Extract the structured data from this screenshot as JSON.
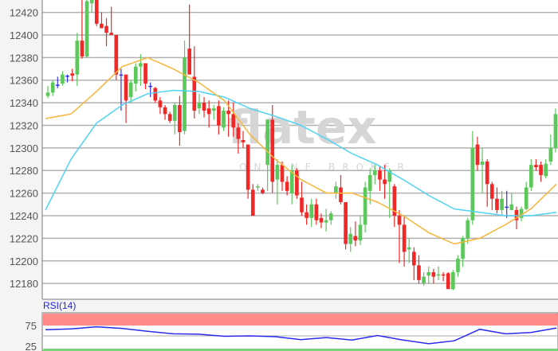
{
  "chart_data": {
    "type": "candlestick",
    "ylim": [
      12166,
      12431
    ],
    "yticks": [
      "12180",
      "12200",
      "12220",
      "12240",
      "12260",
      "12280",
      "12300",
      "12320",
      "12340",
      "12360",
      "12380",
      "12400",
      "12420"
    ],
    "grid": true,
    "colors": {
      "up": "#5cc85c",
      "down": "#f02828",
      "doji": "#3333ee",
      "ma_fast": "#f7b53a",
      "ma_slow": "#4fd3f5",
      "rsi": "#2a2aee",
      "overbought": "#ff8a8a",
      "oversold": "#7ed47e"
    },
    "candles_ohlc": [
      [
        12346,
        12355,
        12344,
        12349
      ],
      [
        12349,
        12360,
        12346,
        12358
      ],
      [
        12356,
        12363,
        12353,
        12356
      ],
      [
        12357,
        12368,
        12355,
        12365
      ],
      [
        12364,
        12365,
        12358,
        12364
      ],
      [
        12366,
        12370,
        12359,
        12364
      ],
      [
        12365,
        12402,
        12355,
        12395
      ],
      [
        12395,
        12440,
        12379,
        12381
      ],
      [
        12381,
        12440,
        12380,
        12430
      ],
      [
        12428,
        12440,
        12420,
        12432
      ],
      [
        12432,
        12432,
        12408,
        12410
      ],
      [
        12410,
        12420,
        12406,
        12406
      ],
      [
        12408,
        12415,
        12390,
        12402
      ],
      [
        12402,
        12425,
        12400,
        12400
      ],
      [
        12400,
        12400,
        12360,
        12365
      ],
      [
        12365,
        12370,
        12333,
        12365
      ],
      [
        12365,
        12365,
        12322,
        12342
      ],
      [
        12345,
        12360,
        12340,
        12358
      ],
      [
        12357,
        12375,
        12350,
        12372
      ],
      [
        12372,
        12383,
        12355,
        12375
      ],
      [
        12375,
        12375,
        12352,
        12357
      ],
      [
        12355,
        12358,
        12345,
        12355
      ],
      [
        12353,
        12354,
        12340,
        12342
      ],
      [
        12342,
        12345,
        12330,
        12336
      ],
      [
        12336,
        12338,
        12325,
        12330
      ],
      [
        12330,
        12332,
        12322,
        12324
      ],
      [
        12324,
        12340,
        12312,
        12338
      ],
      [
        12338,
        12346,
        12302,
        12314
      ],
      [
        12315,
        12395,
        12312,
        12380
      ],
      [
        12388,
        12427,
        12372,
        12365
      ],
      [
        12363,
        12390,
        12326,
        12333
      ],
      [
        12335,
        12348,
        12330,
        12340
      ],
      [
        12340,
        12345,
        12327,
        12333
      ],
      [
        12335,
        12342,
        12318,
        12330
      ],
      [
        12333,
        12338,
        12325,
        12335
      ],
      [
        12337,
        12342,
        12312,
        12320
      ],
      [
        12318,
        12336,
        12315,
        12333
      ],
      [
        12333,
        12342,
        12310,
        12330
      ],
      [
        12330,
        12340,
        12310,
        12318
      ],
      [
        12318,
        12322,
        12295,
        12308
      ],
      [
        12307,
        12315,
        12300,
        12305
      ],
      [
        12303,
        12303,
        12255,
        12263
      ],
      [
        12263,
        12268,
        12240,
        12240
      ],
      [
        12265,
        12268,
        12262,
        12266
      ],
      [
        12263,
        12265,
        12259,
        12260
      ],
      [
        12285,
        12325,
        12262,
        12325
      ],
      [
        12325,
        12338,
        12260,
        12270
      ],
      [
        12272,
        12290,
        12250,
        12285
      ],
      [
        12285,
        12288,
        12262,
        12270
      ],
      [
        12270,
        12275,
        12258,
        12262
      ],
      [
        12260,
        12285,
        12250,
        12280
      ],
      [
        12280,
        12282,
        12255,
        12258
      ],
      [
        12256,
        12270,
        12240,
        12243
      ],
      [
        12243,
        12250,
        12232,
        12238
      ],
      [
        12238,
        12255,
        12230,
        12250
      ],
      [
        12250,
        12255,
        12232,
        12236
      ],
      [
        12238,
        12242,
        12229,
        12234
      ],
      [
        12234,
        12246,
        12226,
        12236
      ],
      [
        12236,
        12244,
        12232,
        12242
      ],
      [
        12260,
        12270,
        12255,
        12266
      ],
      [
        12265,
        12276,
        12250,
        12252
      ],
      [
        12252,
        12252,
        12210,
        12215
      ],
      [
        12215,
        12230,
        12208,
        12224
      ],
      [
        12222,
        12235,
        12213,
        12218
      ],
      [
        12218,
        12240,
        12214,
        12232
      ],
      [
        12232,
        12270,
        12225,
        12265
      ],
      [
        12262,
        12282,
        12250,
        12276
      ],
      [
        12276,
        12285,
        12268,
        12280
      ],
      [
        12280,
        12284,
        12262,
        12272
      ],
      [
        12272,
        12285,
        12255,
        12268
      ],
      [
        12270,
        12282,
        12238,
        12280
      ],
      [
        12266,
        12268,
        12230,
        12240
      ],
      [
        12240,
        12245,
        12198,
        12232
      ],
      [
        12232,
        12240,
        12195,
        12208
      ],
      [
        12210,
        12220,
        12198,
        12212
      ],
      [
        12208,
        12212,
        12183,
        12196
      ],
      [
        12196,
        12205,
        12180,
        12183
      ],
      [
        12180,
        12190,
        12178,
        12186
      ],
      [
        12187,
        12195,
        12180,
        12190
      ],
      [
        12190,
        12193,
        12180,
        12186
      ],
      [
        12187,
        12195,
        12183,
        12188
      ],
      [
        12188,
        12190,
        12182,
        12187
      ],
      [
        12189,
        12190,
        12176,
        12175
      ],
      [
        12175,
        12192,
        12174,
        12190
      ],
      [
        12190,
        12205,
        12186,
        12202
      ],
      [
        12202,
        12222,
        12195,
        12220
      ],
      [
        12220,
        12238,
        12215,
        12236
      ],
      [
        12236,
        12315,
        12232,
        12300
      ],
      [
        12303,
        12310,
        12280,
        12285
      ],
      [
        12285,
        12300,
        12260,
        12288
      ],
      [
        12288,
        12290,
        12248,
        12268
      ],
      [
        12268,
        12270,
        12245,
        12255
      ],
      [
        12255,
        12265,
        12242,
        12245
      ],
      [
        12245,
        12262,
        12240,
        12255
      ],
      [
        12248,
        12262,
        12238,
        12248
      ],
      [
        12245,
        12260,
        12245,
        12250
      ],
      [
        12245,
        12248,
        12228,
        12236
      ],
      [
        12238,
        12248,
        12235,
        12246
      ],
      [
        12246,
        12270,
        12245,
        12265
      ],
      [
        12265,
        12290,
        12262,
        12285
      ],
      [
        12285,
        12290,
        12280,
        12283
      ],
      [
        12285,
        12288,
        12270,
        12276
      ],
      [
        12275,
        12290,
        12273,
        12286
      ],
      [
        12288,
        12312,
        12285,
        12300
      ],
      [
        12300,
        12335,
        12296,
        12330
      ]
    ],
    "ma_fast_sampled": [
      12326,
      12330,
      12350,
      12372,
      12380,
      12370,
      12358,
      12342,
      12312,
      12290,
      12272,
      12260,
      12260,
      12252,
      12240,
      12225,
      12215,
      12220,
      12232,
      12246,
      12268
    ],
    "ma_slow_sampled": [
      12245,
      12290,
      12322,
      12338,
      12348,
      12351,
      12350,
      12345,
      12335,
      12328,
      12320,
      12308,
      12295,
      12285,
      12272,
      12258,
      12246,
      12243,
      12240,
      12240,
      12243
    ],
    "rsi": {
      "label": "RSI(14)",
      "yticks": [
        "75",
        "25"
      ],
      "overbought": 75,
      "oversold": 25,
      "values_sampled": [
        65,
        67,
        72,
        68,
        61,
        55,
        54,
        49,
        50,
        48,
        41,
        46,
        40,
        51,
        40,
        31,
        38,
        66,
        55,
        58,
        69
      ]
    }
  },
  "watermark": {
    "brand": "flatex",
    "tagline": "ONLINE BROKER"
  }
}
